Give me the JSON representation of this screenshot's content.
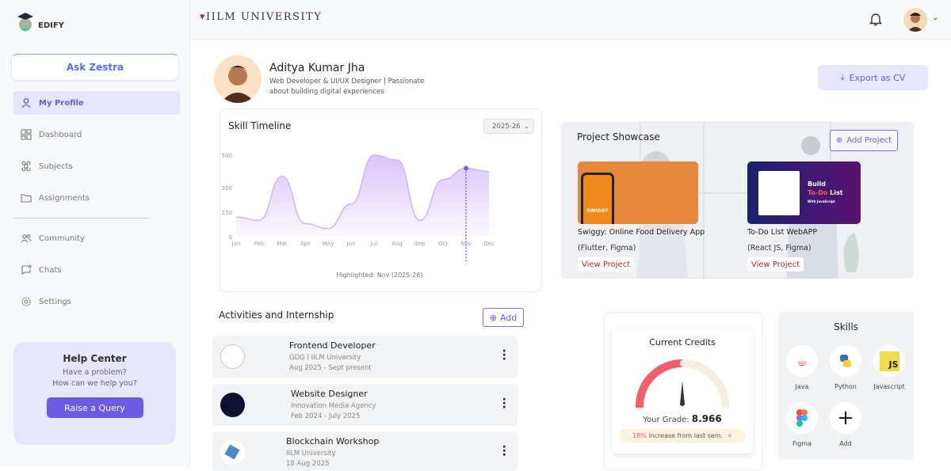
{
  "brand": {
    "logo_text": "EDIFY",
    "university": "IILM UNIVERSITY"
  },
  "sidebar": {
    "ask": "Ask Zestra",
    "items": [
      {
        "label": "My Profile",
        "icon": "user-icon",
        "active": true
      },
      {
        "label": "Dashboard",
        "icon": "dashboard-icon"
      },
      {
        "label": "Subjects",
        "icon": "command-icon"
      },
      {
        "label": "Assignments",
        "icon": "folder-icon"
      },
      {
        "label": "Community",
        "icon": "users-icon"
      },
      {
        "label": "Chats",
        "icon": "chat-icon"
      },
      {
        "label": "Settings",
        "icon": "gear-icon"
      }
    ],
    "help": {
      "title": "Help Center",
      "line1": "Have a problem?",
      "line2": "How can we help you?",
      "button": "Raise a Query"
    }
  },
  "profile": {
    "name": "Aditya Kumar Jha",
    "desc": "Web Developer & UI/UX Designer | Passionate about building digital experiences",
    "export": "Export as CV"
  },
  "chart_data": {
    "type": "area",
    "title": "Skill Timeline",
    "selected_year": "2025-26",
    "categories": [
      "Jan",
      "Feb",
      "Mar",
      "Apr",
      "May",
      "Jun",
      "Jul",
      "Aug",
      "Sep",
      "Oct",
      "Nov",
      "Dec"
    ],
    "values": [
      120,
      100,
      370,
      80,
      50,
      200,
      500,
      470,
      100,
      350,
      420,
      400
    ],
    "yticks": [
      0,
      150,
      300,
      500
    ],
    "ylim": [
      0,
      500
    ],
    "highlight": "Nov",
    "caption": "Highlighted: Nov (2025-26)",
    "color": "#7c5cf0"
  },
  "projects": {
    "title": "Project Showcase",
    "add": "Add Project",
    "items": [
      {
        "title": "Swiggy: Online Food Delivery App",
        "tech": "(Flutter, Figma)",
        "link": "View Project",
        "thumb_text": "SWIGGY"
      },
      {
        "title": "To-Do List WebAPP",
        "tech": "(React JS, Figma)",
        "link": "View Project",
        "thumb_line1": "Build",
        "thumb_line2a": "To-Do",
        "thumb_line2b": "List",
        "thumb_line3": "With JavaScript"
      }
    ]
  },
  "activities": {
    "title": "Activities and Internship",
    "add": "Add",
    "items": [
      {
        "role": "Frontend Developer",
        "org": "GDG I IILM University",
        "date": "Aug 2025 - Sept present"
      },
      {
        "role": "Website Designer",
        "org": "Innovation Media Agency",
        "date": "Feb 2024 - July 2025"
      },
      {
        "role": "Blockchain Workshop",
        "org": "IILM University",
        "date": "18 Aug 2025"
      }
    ]
  },
  "credits": {
    "title": "Current Credits",
    "grade_label": "Your Grade:",
    "grade": "8.966",
    "gauge_fraction": 0.5,
    "increase_pct": "18%",
    "increase_text": "increase from last sem.",
    "close": "×"
  },
  "skills": {
    "title": "Skills",
    "items": [
      {
        "label": "Java"
      },
      {
        "label": "Python"
      },
      {
        "label": "Javascript",
        "glyph": "JS"
      },
      {
        "label": "Figma"
      },
      {
        "label": "Add",
        "glyph": "+"
      }
    ]
  }
}
